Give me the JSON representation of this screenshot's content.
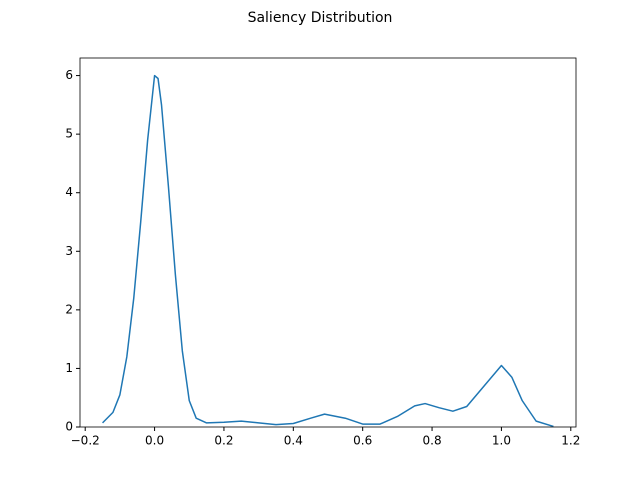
{
  "chart_data": {
    "type": "line",
    "title": "Saliency Distribution",
    "series": [
      {
        "color": "#1f77b4",
        "x": [
          -0.15,
          -0.12,
          -0.1,
          -0.08,
          -0.06,
          -0.04,
          -0.02,
          0,
          0.01,
          0.02,
          0.04,
          0.06,
          0.08,
          0.1,
          0.12,
          0.15,
          0.2,
          0.25,
          0.3,
          0.35,
          0.4,
          0.45,
          0.49,
          0.55,
          0.6,
          0.65,
          0.7,
          0.75,
          0.78,
          0.82,
          0.86,
          0.9,
          0.95,
          1.0,
          1.03,
          1.06,
          1.1,
          1.15
        ],
        "values": [
          0.07,
          0.25,
          0.55,
          1.2,
          2.2,
          3.5,
          4.9,
          6.0,
          5.95,
          5.5,
          4.1,
          2.6,
          1.3,
          0.45,
          0.15,
          0.07,
          0.08,
          0.1,
          0.07,
          0.04,
          0.06,
          0.15,
          0.22,
          0.15,
          0.05,
          0.05,
          0.18,
          0.36,
          0.4,
          0.33,
          0.27,
          0.35,
          0.7,
          1.05,
          0.85,
          0.45,
          0.1,
          0.01
        ]
      }
    ],
    "xlim": [
      -0.215,
      1.215
    ],
    "ylim": [
      0,
      6.3
    ],
    "xticks": [
      {
        "value": -0.2,
        "label": "−0.2"
      },
      {
        "value": 0,
        "label": "0.0"
      },
      {
        "value": 0.2,
        "label": "0.2"
      },
      {
        "value": 0.4,
        "label": "0.4"
      },
      {
        "value": 0.6,
        "label": "0.6"
      },
      {
        "value": 0.8,
        "label": "0.8"
      },
      {
        "value": 1,
        "label": "1.0"
      },
      {
        "value": 1.2,
        "label": "1.2"
      }
    ],
    "yticks": [
      0,
      1,
      2,
      3,
      4,
      5,
      6
    ],
    "grid": false
  }
}
